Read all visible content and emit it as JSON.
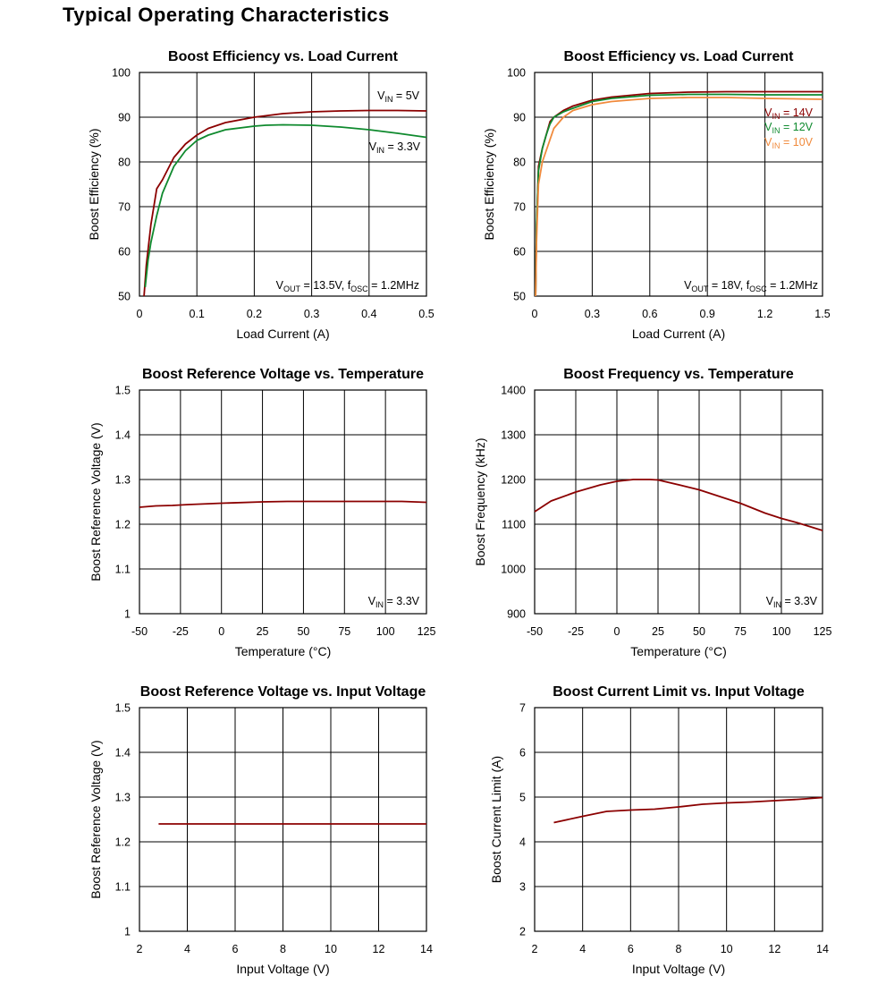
{
  "page_title": "Typical Operating Characteristics",
  "colors": {
    "dark_red": "#8b0000",
    "green": "#0f8a2e",
    "orange": "#f08a3c",
    "grid": "#000000"
  },
  "chart_data": [
    {
      "type": "line",
      "title": "Boost Efficiency vs. Load Current",
      "xlabel": "Load Current (A)",
      "ylabel": "Boost Efficiency (%)",
      "xlim": [
        0,
        0.5
      ],
      "ylim": [
        50,
        100
      ],
      "xticks": [
        0,
        0.1,
        0.2,
        0.3,
        0.4,
        0.5
      ],
      "xtick_labels": [
        "0",
        "0.1",
        "0.2",
        "0.3",
        "0.4",
        "0.5"
      ],
      "yticks": [
        50,
        60,
        70,
        80,
        90,
        100
      ],
      "ytick_labels": [
        "50",
        "60",
        "70",
        "80",
        "90",
        "100"
      ],
      "grid": true,
      "series": [
        {
          "name": "VIN = 5V",
          "color": "#8b0000",
          "x": [
            0.008,
            0.012,
            0.02,
            0.03,
            0.04,
            0.06,
            0.08,
            0.1,
            0.12,
            0.15,
            0.2,
            0.25,
            0.3,
            0.35,
            0.4,
            0.45,
            0.5
          ],
          "y": [
            50,
            57,
            66,
            74,
            76,
            81,
            84,
            86,
            87.5,
            88.8,
            90,
            90.8,
            91.2,
            91.4,
            91.5,
            91.5,
            91.4
          ]
        },
        {
          "name": "VIN = 3.3V",
          "color": "#0f8a2e",
          "x": [
            0.01,
            0.015,
            0.02,
            0.03,
            0.04,
            0.06,
            0.08,
            0.1,
            0.12,
            0.15,
            0.2,
            0.22,
            0.25,
            0.3,
            0.35,
            0.4,
            0.45,
            0.5
          ],
          "y": [
            52,
            58,
            62,
            68,
            73,
            79,
            82.5,
            84.8,
            86,
            87.2,
            88,
            88.2,
            88.3,
            88.2,
            87.8,
            87.2,
            86.4,
            85.5
          ]
        }
      ],
      "annotations": [
        {
          "sub": [
            [
              "V",
              ""
            ],
            [
              "IN",
              "sub"
            ],
            [
              " = 5V",
              ""
            ]
          ],
          "color": "#000000"
        },
        {
          "sub": [
            [
              "V",
              ""
            ],
            [
              "IN",
              "sub"
            ],
            [
              " = 3.3V",
              ""
            ]
          ],
          "color": "#000000"
        },
        {
          "sub": [
            [
              "V",
              ""
            ],
            [
              "OUT",
              "sub"
            ],
            [
              " = 13.5V, f",
              ""
            ],
            [
              "OSC",
              "sub"
            ],
            [
              " = 1.2MHz",
              ""
            ]
          ],
          "color": "#000000"
        }
      ]
    },
    {
      "type": "line",
      "title": "Boost Efficiency vs. Load Current",
      "xlabel": "Load Current (A)",
      "ylabel": "Boost Efficiency (%)",
      "xlim": [
        0,
        1.5
      ],
      "ylim": [
        50,
        100
      ],
      "xticks": [
        0,
        0.3,
        0.6,
        0.9,
        1.2,
        1.5
      ],
      "xtick_labels": [
        "0",
        "0.3",
        "0.6",
        "0.9",
        "1.2",
        "1.5"
      ],
      "yticks": [
        50,
        60,
        70,
        80,
        90,
        100
      ],
      "ytick_labels": [
        "50",
        "60",
        "70",
        "80",
        "90",
        "100"
      ],
      "grid": true,
      "series": [
        {
          "name": "VIN = 14V",
          "color": "#8b0000",
          "x": [
            0.005,
            0.01,
            0.02,
            0.04,
            0.06,
            0.08,
            0.1,
            0.15,
            0.2,
            0.3,
            0.4,
            0.6,
            0.8,
            1.0,
            1.2,
            1.5
          ],
          "y": [
            50,
            65,
            79,
            83,
            86,
            89,
            90,
            91.5,
            92.5,
            93.8,
            94.5,
            95.3,
            95.6,
            95.7,
            95.7,
            95.7
          ]
        },
        {
          "name": "VIN = 12V",
          "color": "#0f8a2e",
          "x": [
            0.005,
            0.01,
            0.02,
            0.04,
            0.06,
            0.08,
            0.1,
            0.15,
            0.2,
            0.3,
            0.4,
            0.6,
            0.8,
            1.0,
            1.2,
            1.5
          ],
          "y": [
            50,
            66,
            78,
            83,
            86,
            88.5,
            90,
            91.2,
            92,
            93.5,
            94.2,
            94.9,
            95.1,
            95.1,
            95.0,
            95.0
          ]
        },
        {
          "name": "VIN = 10V",
          "color": "#f08a3c",
          "x": [
            0.005,
            0.01,
            0.02,
            0.04,
            0.06,
            0.08,
            0.1,
            0.15,
            0.2,
            0.3,
            0.4,
            0.6,
            0.8,
            1.0,
            1.2,
            1.5
          ],
          "y": [
            50,
            62,
            75,
            80,
            82.5,
            85,
            87.5,
            90,
            91.5,
            92.8,
            93.5,
            94.2,
            94.4,
            94.4,
            94.2,
            94.0
          ]
        }
      ],
      "annotations": [
        {
          "sub": [
            [
              "V",
              ""
            ],
            [
              "IN",
              "sub"
            ],
            [
              " = 14V",
              ""
            ]
          ],
          "color": "#8b0000"
        },
        {
          "sub": [
            [
              "V",
              ""
            ],
            [
              "IN",
              "sub"
            ],
            [
              " = 12V",
              ""
            ]
          ],
          "color": "#0f8a2e"
        },
        {
          "sub": [
            [
              "V",
              ""
            ],
            [
              "IN",
              "sub"
            ],
            [
              " = 10V",
              ""
            ]
          ],
          "color": "#f08a3c"
        },
        {
          "sub": [
            [
              "V",
              ""
            ],
            [
              "OUT",
              "sub"
            ],
            [
              " = 18V, f",
              ""
            ],
            [
              "OSC",
              "sub"
            ],
            [
              " = 1.2MHz",
              ""
            ]
          ],
          "color": "#000000"
        }
      ]
    },
    {
      "type": "line",
      "title": "Boost Reference Voltage vs. Temperature",
      "xlabel": "Temperature (°C)",
      "ylabel": "Boost Reference Voltage (V)",
      "xlim": [
        -50,
        125
      ],
      "ylim": [
        1,
        1.5
      ],
      "xticks": [
        -50,
        -25,
        0,
        25,
        50,
        75,
        100,
        125
      ],
      "xtick_labels": [
        "-50",
        "-25",
        "0",
        "25",
        "50",
        "75",
        "100",
        "125"
      ],
      "yticks": [
        1,
        1.1,
        1.2,
        1.3,
        1.4,
        1.5
      ],
      "ytick_labels": [
        "1",
        "1.1",
        "1.2",
        "1.3",
        "1.4",
        "1.5"
      ],
      "grid": true,
      "series": [
        {
          "name": "",
          "color": "#8b0000",
          "x": [
            -50,
            -40,
            -30,
            -20,
            0,
            25,
            40,
            75,
            100,
            110,
            125
          ],
          "y": [
            1.238,
            1.241,
            1.242,
            1.244,
            1.247,
            1.25,
            1.251,
            1.251,
            1.251,
            1.251,
            1.249
          ]
        }
      ],
      "annotations": [
        {
          "sub": [
            [
              "V",
              ""
            ],
            [
              "IN",
              "sub"
            ],
            [
              " = 3.3V",
              ""
            ]
          ],
          "color": "#000000"
        }
      ]
    },
    {
      "type": "line",
      "title": "Boost Frequency vs. Temperature",
      "xlabel": "Temperature (°C)",
      "ylabel": "Boost Frequency (kHz)",
      "xlim": [
        -50,
        125
      ],
      "ylim": [
        900,
        1400
      ],
      "xticks": [
        -50,
        -25,
        0,
        25,
        50,
        75,
        100,
        125
      ],
      "xtick_labels": [
        "-50",
        "-25",
        "0",
        "25",
        "50",
        "75",
        "100",
        "125"
      ],
      "yticks": [
        900,
        1000,
        1100,
        1200,
        1300,
        1400
      ],
      "ytick_labels": [
        "900",
        "1000",
        "1100",
        "1200",
        "1300",
        "1400"
      ],
      "grid": true,
      "series": [
        {
          "name": "",
          "color": "#8b0000",
          "x": [
            -50,
            -40,
            -25,
            -10,
            0,
            10,
            20,
            25,
            40,
            50,
            60,
            75,
            90,
            100,
            110,
            125
          ],
          "y": [
            1128,
            1152,
            1172,
            1188,
            1196,
            1200,
            1200,
            1199,
            1186,
            1177,
            1165,
            1147,
            1125,
            1113,
            1103,
            1086
          ]
        }
      ],
      "annotations": [
        {
          "sub": [
            [
              "V",
              ""
            ],
            [
              "IN",
              "sub"
            ],
            [
              " = 3.3V",
              ""
            ]
          ],
          "color": "#000000"
        }
      ]
    },
    {
      "type": "line",
      "title": "Boost Reference Voltage vs. Input Voltage",
      "xlabel": "Input Voltage (V)",
      "ylabel": "Boost Reference Voltage (V)",
      "xlim": [
        2,
        14
      ],
      "ylim": [
        1,
        1.5
      ],
      "xticks": [
        2,
        4,
        6,
        8,
        10,
        12,
        14
      ],
      "xtick_labels": [
        "2",
        "4",
        "6",
        "8",
        "10",
        "12",
        "14"
      ],
      "yticks": [
        1,
        1.1,
        1.2,
        1.3,
        1.4,
        1.5
      ],
      "ytick_labels": [
        "1",
        "1.1",
        "1.2",
        "1.3",
        "1.4",
        "1.5"
      ],
      "grid": true,
      "series": [
        {
          "name": "",
          "color": "#8b0000",
          "x": [
            2.8,
            14
          ],
          "y": [
            1.24,
            1.24
          ]
        }
      ],
      "annotations": []
    },
    {
      "type": "line",
      "title": "Boost Current Limit vs. Input Voltage",
      "xlabel": "Input Voltage (V)",
      "ylabel": "Boost Current Limit (A)",
      "xlim": [
        2,
        14
      ],
      "ylim": [
        2,
        7
      ],
      "xticks": [
        2,
        4,
        6,
        8,
        10,
        12,
        14
      ],
      "xtick_labels": [
        "2",
        "4",
        "6",
        "8",
        "10",
        "12",
        "14"
      ],
      "yticks": [
        2,
        3,
        4,
        5,
        6,
        7
      ],
      "ytick_labels": [
        "2",
        "3",
        "4",
        "5",
        "6",
        "7"
      ],
      "grid": true,
      "series": [
        {
          "name": "",
          "color": "#8b0000",
          "x": [
            2.8,
            4,
            5,
            6,
            7,
            8,
            9,
            10,
            11,
            12,
            13,
            14
          ],
          "y": [
            4.43,
            4.57,
            4.68,
            4.71,
            4.73,
            4.78,
            4.84,
            4.87,
            4.89,
            4.92,
            4.95,
            4.99
          ]
        }
      ],
      "annotations": []
    }
  ]
}
